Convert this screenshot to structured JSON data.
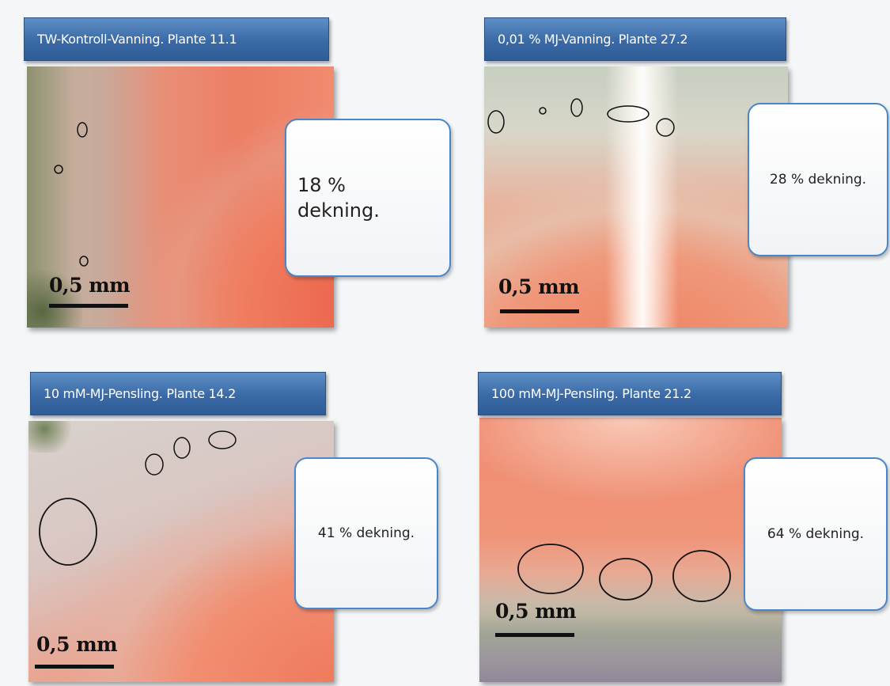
{
  "panels": [
    {
      "title": "TW-Kontroll-Vanning. Plante 11.1",
      "coverage": "18 % dekning.",
      "scale": "0,5 mm"
    },
    {
      "title": "0,01 % MJ-Vanning. Plante 27.2",
      "coverage": "28 % dekning.",
      "scale": "0,5 mm"
    },
    {
      "title": "10 mM-MJ-Pensling. Plante 14.2",
      "coverage": "41 % dekning.",
      "scale": "0,5 mm"
    },
    {
      "title": "100 mM-MJ-Pensling. Plante 21.2",
      "coverage": "64 % dekning.",
      "scale": "0,5 mm"
    }
  ]
}
